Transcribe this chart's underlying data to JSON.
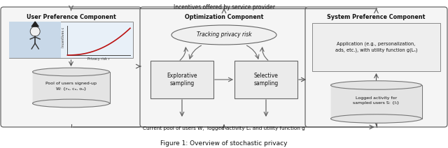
{
  "title": "Figure 1: Overview of stochastic privacy",
  "top_arrow_text": "Incentives offered by service provider",
  "bottom_arrow_text": "Current pool of users W,  logged activity Lₛ and utility function g",
  "box1_title": "User Preference Component",
  "box1_img_xlabel": "Privacy risk r",
  "box1_img_ylabel": "Incentives c",
  "box1_db_text": "Pool of users signed-up\nW: {rᵤ, cᵤ, oᵤ}",
  "box2_title": "Optimization Component",
  "box2_oval_text": "Tracking privacy risk",
  "box2_left_text": "Explorative\nsampling",
  "box2_right_text": "Selective\nsampling",
  "box3_title": "System Preference Component",
  "box3_rect_text": "Application (e.g., personalization,\nads, etc.), with utility function g(Lₛ)",
  "box3_db_text": "Logged activity for\nsampled users S: {lᵢ}",
  "bg_color": "#ffffff",
  "box_facecolor": "#f5f5f5",
  "box_edgecolor": "#555555",
  "arrow_color": "#555555",
  "text_color": "#111111"
}
